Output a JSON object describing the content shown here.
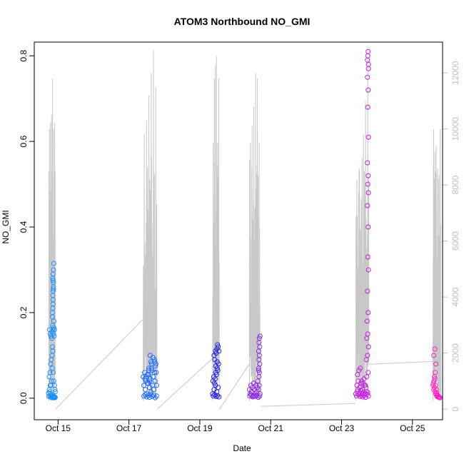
{
  "chart_data": {
    "type": "scatter",
    "title": "ATOM3 Northbound NO_GMI",
    "xlabel": "Date",
    "ylabel": "NO_GMI",
    "y2label": "",
    "xlim": [
      14.55,
      25.85
    ],
    "ylim": [
      -0.032,
      0.832
    ],
    "y2lim": [
      -100,
      13100
    ],
    "x_ticks": [
      15,
      17,
      19,
      21,
      23,
      25
    ],
    "x_tick_labels": [
      "Oct 15",
      "Oct 17",
      "Oct 19",
      "Oct 21",
      "Oct 23",
      "Oct 25"
    ],
    "y_ticks": [
      0.0,
      0.2,
      0.4,
      0.6,
      0.8
    ],
    "y_tick_labels": [
      "0.0",
      "0.2",
      "0.4",
      "0.6",
      "0.8"
    ],
    "y2_ticks": [
      0,
      2000,
      4000,
      6000,
      8000,
      10000,
      12000
    ],
    "y2_tick_labels": [
      "0",
      "2000",
      "4000",
      "6000",
      "8000",
      "10000",
      "12000"
    ],
    "grid": false,
    "colors": {
      "altitude_line": "#c8c8c8",
      "axis": "#000000",
      "right_axis": "#c0c0c0"
    },
    "series": [
      {
        "kind": "scatter",
        "color": "#1e90ff",
        "marker": "open-circle",
        "x": [
          14.73,
          14.74,
          14.75,
          14.76,
          14.77,
          14.78,
          14.79,
          14.8,
          14.81,
          14.82,
          14.83,
          14.84,
          14.85,
          14.86,
          14.87,
          14.88,
          14.89,
          14.9,
          14.91,
          14.92,
          14.76,
          14.78,
          14.8,
          14.82,
          14.84,
          14.86,
          14.88,
          14.9,
          14.83,
          14.85,
          14.87,
          14.89,
          14.84,
          14.86,
          14.88,
          14.85,
          14.87,
          14.79,
          14.81,
          14.83,
          14.77,
          14.75,
          14.91,
          14.92,
          14.9,
          14.88,
          14.86,
          14.84,
          14.82,
          14.8,
          14.86,
          14.87,
          14.85,
          14.86,
          14.87,
          14.88,
          14.85,
          14.86,
          14.84,
          14.87,
          14.86,
          14.85
        ],
        "y": [
          0.012,
          0.004,
          0.02,
          0.015,
          0.005,
          0.03,
          0.01,
          0.002,
          0.006,
          0.001,
          0.008,
          0.003,
          0.002,
          0.005,
          0.001,
          0.004,
          0.002,
          0.003,
          0.001,
          0.002,
          0.16,
          0.15,
          0.145,
          0.14,
          0.12,
          0.16,
          0.165,
          0.16,
          0.155,
          0.17,
          0.15,
          0.145,
          0.2,
          0.22,
          0.18,
          0.24,
          0.26,
          0.08,
          0.09,
          0.1,
          0.06,
          0.05,
          0.02,
          0.015,
          0.03,
          0.04,
          0.06,
          0.07,
          0.04,
          0.03,
          0.25,
          0.27,
          0.28,
          0.29,
          0.3,
          0.315,
          0.21,
          0.23,
          0.19,
          0.255,
          0.275,
          0.11
        ]
      },
      {
        "kind": "scatter",
        "color": "#1c6bff",
        "marker": "open-circle",
        "x": [
          17.4,
          17.42,
          17.44,
          17.46,
          17.48,
          17.5,
          17.52,
          17.54,
          17.56,
          17.58,
          17.6,
          17.62,
          17.64,
          17.66,
          17.68,
          17.7,
          17.72,
          17.74,
          17.76,
          17.78,
          17.42,
          17.46,
          17.5,
          17.54,
          17.58,
          17.62,
          17.66,
          17.7,
          17.74,
          17.78,
          17.45,
          17.55,
          17.65,
          17.75,
          17.52,
          17.62,
          17.72,
          17.6,
          17.68,
          17.56,
          17.64,
          17.73,
          17.77,
          17.48,
          17.58
        ],
        "y": [
          0.05,
          0.03,
          0.06,
          0.02,
          0.04,
          0.01,
          0.055,
          0.035,
          0.065,
          0.025,
          0.045,
          0.015,
          0.07,
          0.03,
          0.05,
          0.02,
          0.06,
          0.04,
          0.08,
          0.03,
          0.005,
          0.008,
          0.003,
          0.006,
          0.002,
          0.009,
          0.004,
          0.007,
          0.001,
          0.005,
          0.045,
          0.055,
          0.065,
          0.075,
          0.035,
          0.085,
          0.09,
          0.1,
          0.095,
          0.07,
          0.08,
          0.085,
          0.06,
          0.05,
          0.04
        ]
      },
      {
        "kind": "scatter",
        "color": "#2020e8",
        "marker": "open-circle",
        "x": [
          19.36,
          19.38,
          19.4,
          19.42,
          19.44,
          19.46,
          19.48,
          19.5,
          19.52,
          19.54,
          19.37,
          19.39,
          19.41,
          19.43,
          19.45,
          19.47,
          19.49,
          19.51,
          19.53,
          19.4,
          19.44,
          19.48,
          19.52,
          19.42,
          19.46,
          19.5,
          19.54,
          19.45,
          19.49
        ],
        "y": [
          0.01,
          0.005,
          0.02,
          0.008,
          0.03,
          0.004,
          0.015,
          0.006,
          0.025,
          0.003,
          0.04,
          0.05,
          0.035,
          0.045,
          0.06,
          0.055,
          0.07,
          0.065,
          0.08,
          0.1,
          0.11,
          0.115,
          0.12,
          0.09,
          0.105,
          0.125,
          0.11,
          0.075,
          0.085
        ]
      },
      {
        "kind": "scatter",
        "color": "#8a2be2",
        "marker": "open-circle",
        "x": [
          20.4,
          20.42,
          20.44,
          20.46,
          20.48,
          20.5,
          20.52,
          20.54,
          20.56,
          20.58,
          20.6,
          20.62,
          20.64,
          20.66,
          20.68,
          20.7,
          20.41,
          20.45,
          20.49,
          20.53,
          20.57,
          20.61,
          20.65,
          20.69,
          20.67,
          20.68,
          20.66,
          20.69,
          20.67,
          20.68,
          20.66,
          20.69,
          20.67,
          20.68,
          20.7,
          20.66
        ],
        "y": [
          0.02,
          0.01,
          0.03,
          0.015,
          0.025,
          0.005,
          0.035,
          0.02,
          0.01,
          0.03,
          0.015,
          0.025,
          0.04,
          0.02,
          0.03,
          0.01,
          0.005,
          0.008,
          0.003,
          0.006,
          0.004,
          0.007,
          0.002,
          0.005,
          0.05,
          0.06,
          0.07,
          0.08,
          0.09,
          0.1,
          0.11,
          0.12,
          0.13,
          0.14,
          0.145,
          0.065
        ]
      },
      {
        "kind": "scatter",
        "color": "#c020e0",
        "marker": "open-circle",
        "x": [
          23.4,
          23.42,
          23.44,
          23.46,
          23.48,
          23.5,
          23.52,
          23.54,
          23.56,
          23.58,
          23.6,
          23.62,
          23.64,
          23.66,
          23.68,
          23.7,
          23.72,
          23.74,
          23.76,
          23.43,
          23.47,
          23.51,
          23.55,
          23.59,
          23.63,
          23.67,
          23.71,
          23.75,
          23.45,
          23.49,
          23.53,
          23.57,
          23.61,
          23.65,
          23.69,
          23.73,
          23.76,
          23.74,
          23.75,
          23.73,
          23.76,
          23.74,
          23.75,
          23.73,
          23.76,
          23.74,
          23.75,
          23.73,
          23.76,
          23.74,
          23.75,
          23.73,
          23.76,
          23.74,
          23.75,
          23.73,
          23.76,
          23.72,
          23.71,
          23.7
        ],
        "y": [
          0.01,
          0.005,
          0.015,
          0.02,
          0.008,
          0.012,
          0.004,
          0.018,
          0.006,
          0.01,
          0.003,
          0.014,
          0.007,
          0.011,
          0.002,
          0.016,
          0.009,
          0.013,
          0.005,
          0.03,
          0.04,
          0.025,
          0.035,
          0.02,
          0.045,
          0.03,
          0.05,
          0.06,
          0.055,
          0.065,
          0.07,
          0.04,
          0.035,
          0.03,
          0.025,
          0.1,
          0.12,
          0.15,
          0.2,
          0.25,
          0.3,
          0.33,
          0.4,
          0.45,
          0.48,
          0.5,
          0.52,
          0.55,
          0.61,
          0.68,
          0.72,
          0.75,
          0.78,
          0.8,
          0.81,
          0.79,
          0.77,
          0.18,
          0.14,
          0.09
        ]
      },
      {
        "kind": "scatter",
        "color": "#ff1fc8",
        "marker": "open-circle",
        "x": [
          25.58,
          25.6,
          25.62,
          25.64,
          25.66,
          25.68,
          25.7,
          25.72,
          25.74,
          25.76,
          25.78,
          25.59,
          25.61,
          25.63,
          25.65,
          25.67,
          25.69,
          25.71,
          25.73,
          25.75,
          25.62,
          25.64,
          25.66,
          25.6,
          25.63
        ],
        "y": [
          0.03,
          0.02,
          0.025,
          0.015,
          0.01,
          0.005,
          0.008,
          0.003,
          0.004,
          0.002,
          0.001,
          0.035,
          0.04,
          0.045,
          0.03,
          0.02,
          0.012,
          0.006,
          0.003,
          0.002,
          0.05,
          0.06,
          0.08,
          0.1,
          0.115
        ]
      }
    ]
  }
}
